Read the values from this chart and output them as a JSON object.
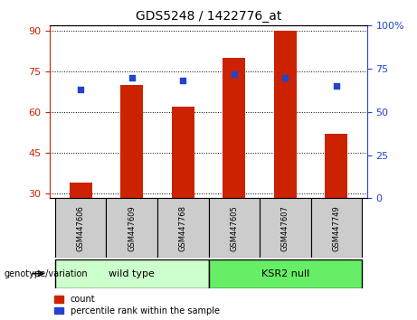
{
  "title": "GDS5248 / 1422776_at",
  "samples": [
    "GSM447606",
    "GSM447609",
    "GSM447768",
    "GSM447605",
    "GSM447607",
    "GSM447749"
  ],
  "groups": [
    "wild type",
    "wild type",
    "wild type",
    "KSR2 null",
    "KSR2 null",
    "KSR2 null"
  ],
  "group_labels": [
    "wild type",
    "KSR2 null"
  ],
  "count_values": [
    34,
    70,
    62,
    80,
    90,
    52
  ],
  "percentile_values": [
    63,
    70,
    68,
    72,
    70,
    65
  ],
  "ylim_left": [
    28,
    92
  ],
  "ylim_right": [
    0,
    100
  ],
  "yticks_left": [
    30,
    45,
    60,
    75,
    90
  ],
  "yticks_right": [
    0,
    25,
    50,
    75,
    100
  ],
  "bar_color": "#cc2200",
  "dot_color": "#2244cc",
  "bar_width": 0.45,
  "group_colors": {
    "wild type": "#ccffcc",
    "KSR2 null": "#66ee66"
  },
  "sample_bg_color": "#cccccc",
  "plot_bg": "#ffffff",
  "legend_count_label": "count",
  "legend_pct_label": "percentile rank within the sample",
  "xlabel_genotype": "genotype/variation"
}
